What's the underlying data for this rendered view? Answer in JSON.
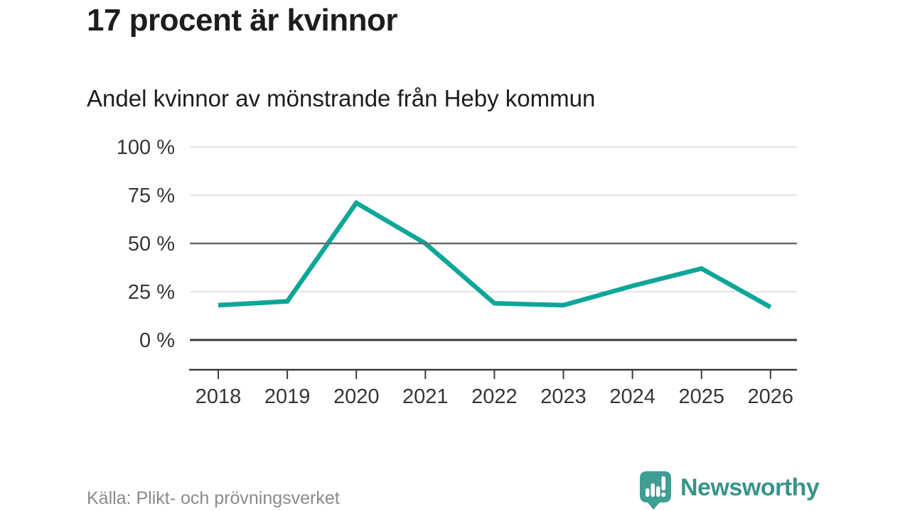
{
  "header": {
    "title": "17 procent är kvinnor",
    "subtitle": "Andel kvinnor av mönstrande från Heby kommun"
  },
  "footer": {
    "source": "Källa: Plikt- och prövningsverket",
    "brand": "Newsworthy"
  },
  "colors": {
    "line": "#0da698",
    "grid_light": "#e4e4e4",
    "grid_mid": "#6b6b6b",
    "grid_dark": "#3c3c3c",
    "axis_text": "#363636",
    "title_text": "#1d1d1b",
    "source_text": "#8a8a8a",
    "brand_icon": "#3f9e94",
    "brand_text": "#39938a"
  },
  "chart_data": {
    "type": "line",
    "title": "Andel kvinnor av mönstrande från Heby kommun",
    "x": [
      2018,
      2019,
      2020,
      2021,
      2022,
      2023,
      2024,
      2025,
      2026
    ],
    "series": [
      {
        "name": "andel-kvinnor",
        "values": [
          18,
          20,
          71,
          50,
          19,
          18,
          28,
          37,
          17
        ]
      }
    ],
    "unit": "%",
    "xlabel": "",
    "ylabel": "",
    "ylim": [
      0,
      100
    ],
    "yticks": [
      0,
      25,
      50,
      75,
      100
    ],
    "ytick_suffix": " %",
    "emphasized_gridline": 50,
    "baseline_gridline": 0,
    "grid": "horizontal",
    "legend": "none"
  }
}
